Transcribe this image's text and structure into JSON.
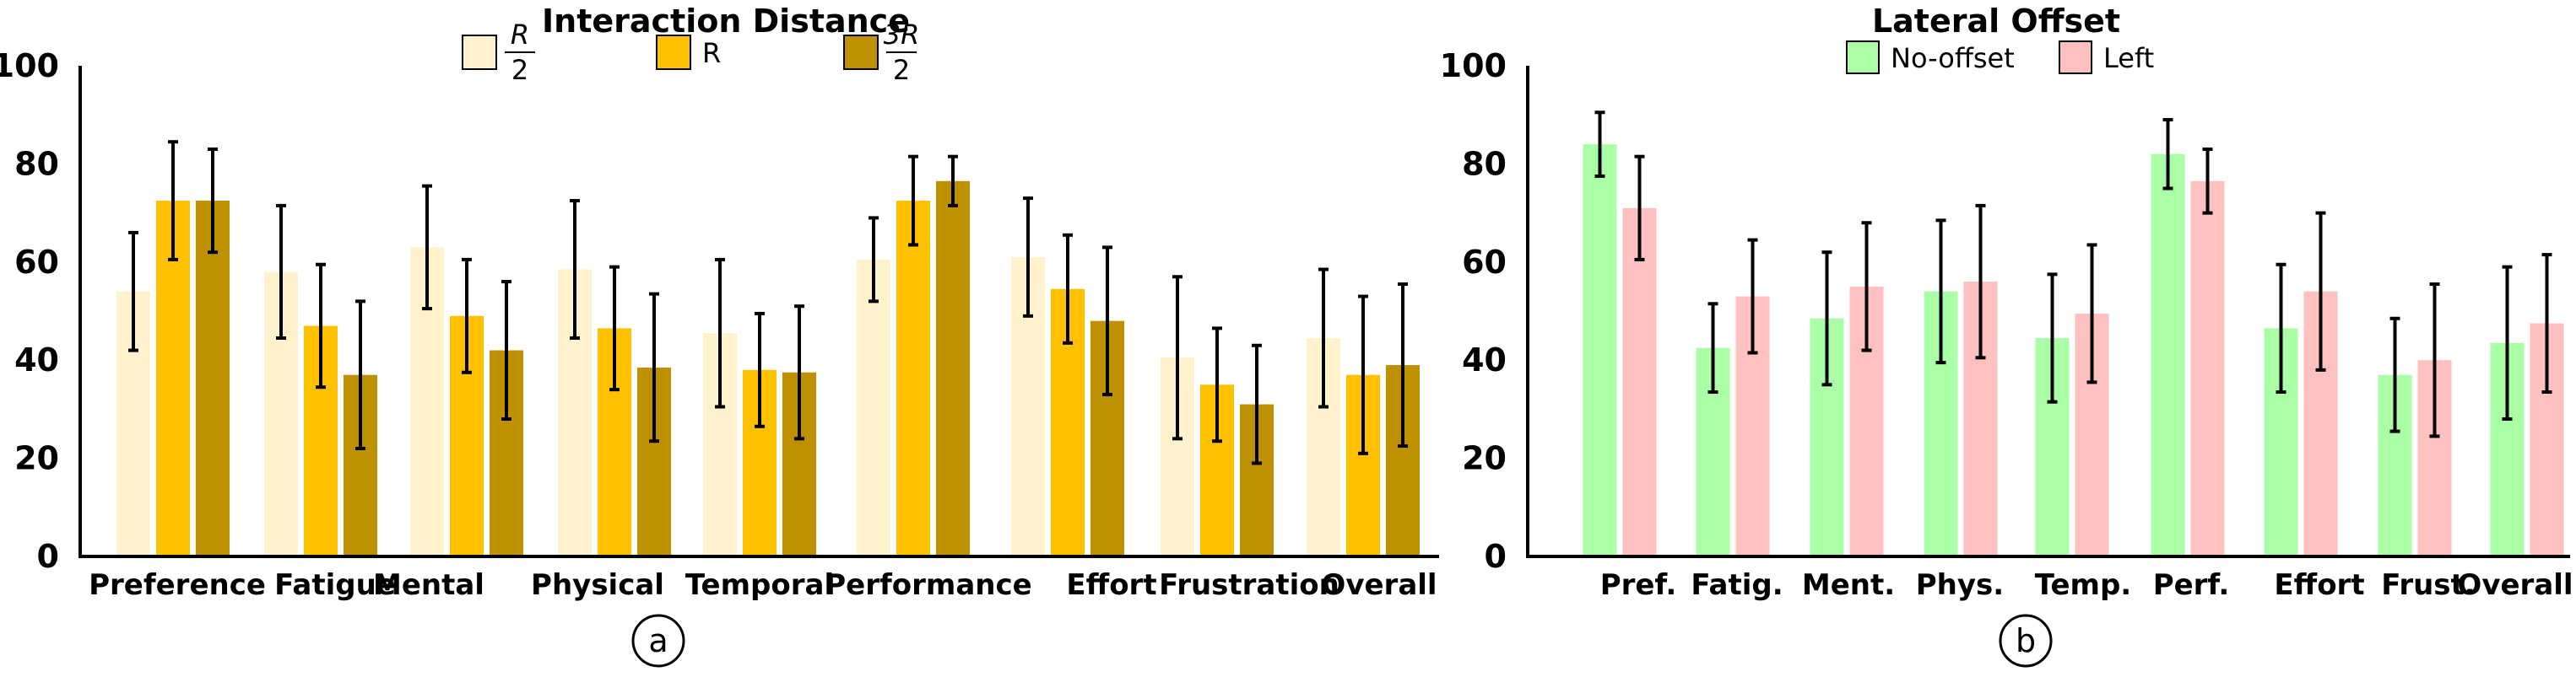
{
  "chart_data": [
    {
      "type": "bar",
      "title": "Interaction Distance",
      "panel_label": "a",
      "ylim": [
        0,
        100
      ],
      "yticks": [
        0,
        20,
        40,
        60,
        80,
        100
      ],
      "xlabel": "",
      "ylabel": "",
      "categories": [
        "Preference",
        "Fatigue",
        "Mental",
        "Physical",
        "Temporal",
        "Performance",
        "Effort",
        "Frustration",
        "Overall"
      ],
      "series": [
        {
          "name": "R/2",
          "legend_num": "R",
          "legend_den": "2",
          "color": "#FFF2CC",
          "values": [
            54,
            58,
            63,
            58.5,
            45.5,
            60.5,
            61,
            40.5,
            44.5
          ],
          "errors": [
            12,
            13.5,
            12.5,
            14,
            15,
            8.5,
            12,
            16.5,
            14
          ]
        },
        {
          "name": "R",
          "color": "#FFC000",
          "values": [
            72.5,
            47,
            49,
            46.5,
            38,
            72.5,
            54.5,
            35,
            37
          ],
          "errors": [
            12,
            12.5,
            11.5,
            12.5,
            11.5,
            9,
            11,
            11.5,
            16
          ]
        },
        {
          "name": "3R/2",
          "legend_num": "3R",
          "legend_den": "2",
          "color": "#BF9000",
          "values": [
            72.5,
            37,
            42,
            38.5,
            37.5,
            76.5,
            48,
            31,
            39
          ],
          "errors": [
            10.5,
            15,
            14,
            15,
            13.5,
            5,
            15,
            12,
            16.5
          ]
        }
      ]
    },
    {
      "type": "bar",
      "title": "Lateral Offset",
      "panel_label": "b",
      "ylim": [
        0,
        100
      ],
      "yticks": [
        0,
        20,
        40,
        60,
        80,
        100
      ],
      "xlabel": "",
      "ylabel": "",
      "categories": [
        "Pref.",
        "Fatig.",
        "Ment.",
        "Phys.",
        "Temp.",
        "Perf.",
        "Effort",
        "Frust.",
        "Overall"
      ],
      "series": [
        {
          "name": "No-offset",
          "color": "#AAFFA6",
          "values": [
            84,
            42.5,
            48.5,
            54,
            44.5,
            82,
            46.5,
            37,
            43.5
          ],
          "errors": [
            6.5,
            9,
            13.5,
            14.5,
            13,
            7,
            13,
            11.5,
            15.5
          ]
        },
        {
          "name": "Left",
          "color": "#FFC0C0",
          "values": [
            71,
            53,
            55,
            56,
            49.5,
            76.5,
            54,
            40,
            47.5
          ],
          "errors": [
            10.5,
            11.5,
            13,
            15.5,
            14,
            6.5,
            16,
            15.5,
            14
          ]
        }
      ]
    }
  ]
}
